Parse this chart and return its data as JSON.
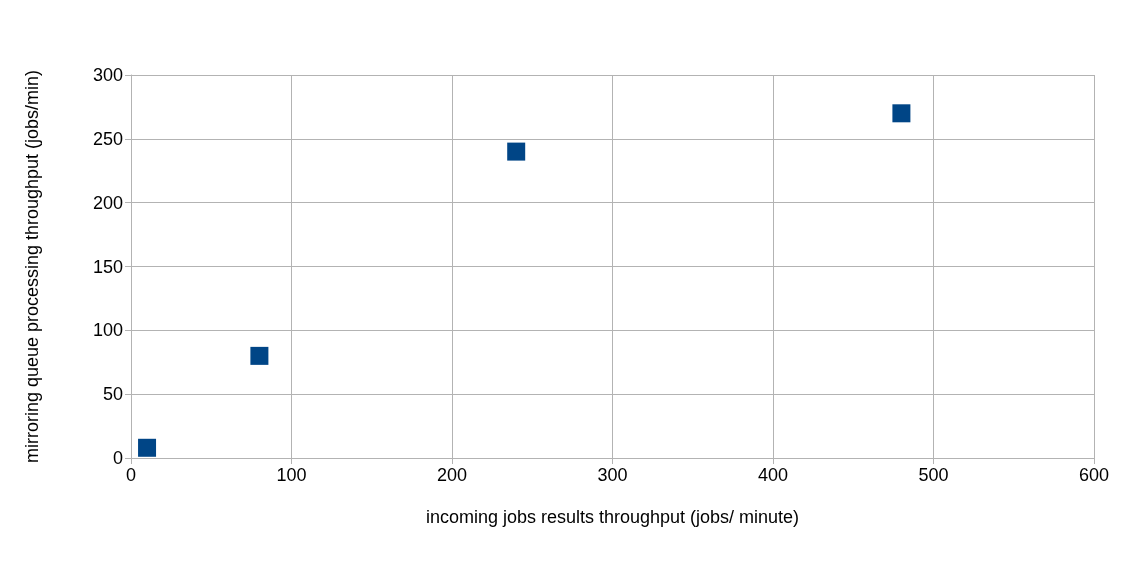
{
  "chart_data": {
    "type": "scatter",
    "xlabel": "incoming jobs results throughput (jobs/ minute)",
    "ylabel": "mirroring queue processing throughput (jobs/min)",
    "series": [
      {
        "color": "#004586",
        "x": [
          10,
          80,
          240,
          480
        ],
        "values": [
          8,
          80,
          240,
          270
        ]
      }
    ],
    "xlim": [
      0,
      600
    ],
    "xticks": [
      0,
      100,
      200,
      300,
      400,
      500,
      600
    ],
    "ylim": [
      0,
      300
    ],
    "yticks": [
      0,
      50,
      100,
      150,
      200,
      250,
      300
    ],
    "grid": true,
    "marker": "square"
  }
}
